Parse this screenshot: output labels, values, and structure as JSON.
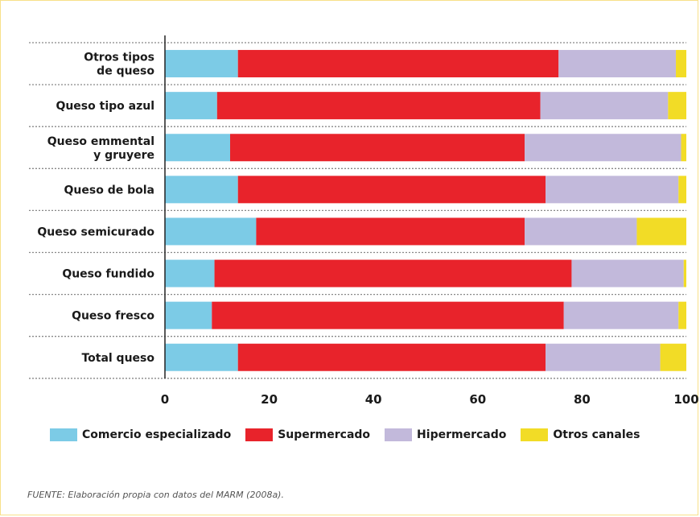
{
  "chart_data": {
    "type": "bar",
    "orientation": "horizontal",
    "stacked": true,
    "categories": [
      [
        "Otros tipos",
        "de queso"
      ],
      [
        "Queso tipo azul"
      ],
      [
        "Queso emmental",
        "y gruyere"
      ],
      [
        "Queso de bola"
      ],
      [
        "Queso semicurado"
      ],
      [
        "Queso fundido"
      ],
      [
        "Queso fresco"
      ],
      [
        "Total queso"
      ]
    ],
    "series": [
      {
        "name": "Comercio especializado",
        "color": "#7ccbe6",
        "values": [
          14,
          10,
          12.5,
          14,
          17.5,
          9.5,
          9,
          14
        ]
      },
      {
        "name": "Supermercado",
        "color": "#e8232b",
        "values": [
          61.5,
          62,
          56.5,
          59,
          51.5,
          68.5,
          67.5,
          59
        ]
      },
      {
        "name": "Hipermercado",
        "color": "#c2b9db",
        "values": [
          22.5,
          24.5,
          30,
          25.5,
          21.5,
          21.5,
          22,
          22
        ]
      },
      {
        "name": "Otros canales",
        "color": "#f2dc26",
        "values": [
          4.5,
          5.5,
          3.5,
          4,
          11.5,
          3.2,
          3.5,
          7
        ]
      }
    ],
    "xlim": [
      0,
      100
    ],
    "xticks": [
      0,
      20,
      40,
      60,
      80,
      100
    ],
    "grid": "dotted separators between categories",
    "legend_position": "bottom"
  },
  "source_note": "FUENTE: Elaboración propia con datos del MARM (2008a)."
}
